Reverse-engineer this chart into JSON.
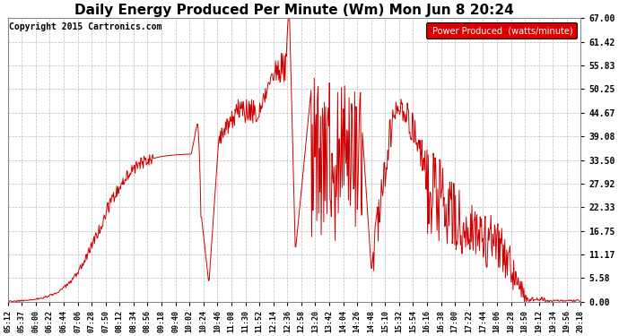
{
  "title": "Daily Energy Produced Per Minute (Wm) Mon Jun 8 20:24",
  "copyright": "Copyright 2015 Cartronics.com",
  "legend_label": "Power Produced  (watts/minute)",
  "legend_bg": "#dd0000",
  "legend_text_color": "#ffffff",
  "line_color": "#cc0000",
  "bg_color": "#ffffff",
  "plot_bg_color": "#ffffff",
  "grid_color": "#bbbbbb",
  "title_fontsize": 11,
  "copyright_fontsize": 7,
  "ylim": [
    0,
    67.0
  ],
  "yticks": [
    0.0,
    5.58,
    11.17,
    16.75,
    22.33,
    27.92,
    33.5,
    39.08,
    44.67,
    50.25,
    55.83,
    61.42,
    67.0
  ],
  "xtick_labels": [
    "05:12",
    "05:37",
    "06:00",
    "06:22",
    "06:44",
    "07:06",
    "07:28",
    "07:50",
    "08:12",
    "08:34",
    "08:56",
    "09:18",
    "09:40",
    "10:02",
    "10:24",
    "10:46",
    "11:08",
    "11:30",
    "11:52",
    "12:14",
    "12:36",
    "12:58",
    "13:20",
    "13:42",
    "14:04",
    "14:26",
    "14:48",
    "15:10",
    "15:32",
    "15:54",
    "16:16",
    "16:38",
    "17:00",
    "17:22",
    "17:44",
    "18:06",
    "18:28",
    "18:50",
    "19:12",
    "19:34",
    "19:56",
    "20:18"
  ]
}
